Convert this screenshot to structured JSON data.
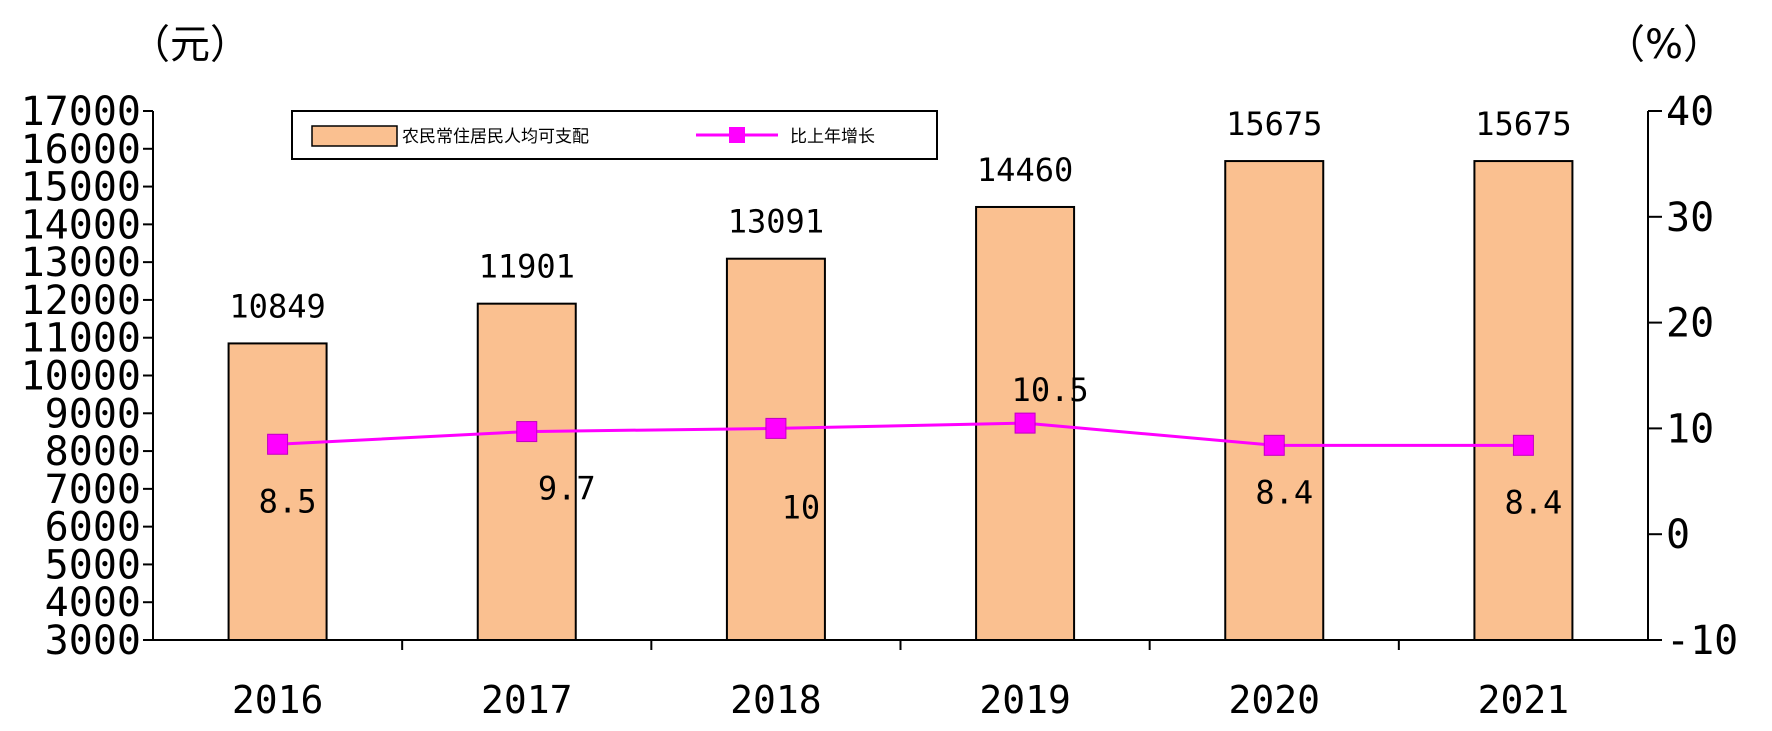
{
  "chart_data": {
    "type": "bar",
    "categories": [
      "2016",
      "2017",
      "2018",
      "2019",
      "2020",
      "2021"
    ],
    "series": [
      {
        "name": "农民常住居民人均可支配",
        "type": "bar",
        "axis": "left",
        "color": "#FAC090",
        "values": [
          10849,
          11901,
          13091,
          14460,
          15675,
          15675
        ]
      },
      {
        "name": "比上年增长",
        "type": "line",
        "axis": "right",
        "color": "#FF00FF",
        "values": [
          8.5,
          9.7,
          10,
          10.5,
          8.4,
          8.4
        ]
      }
    ],
    "y_left": {
      "unit": "（元）",
      "range": [
        3000,
        17000
      ],
      "ticks": [
        "17000",
        "16000",
        "15000",
        "14000",
        "13000",
        "12000",
        "11000",
        "10000",
        "9000",
        "8000",
        "7000",
        "6000",
        "5000",
        "4000",
        "3000"
      ]
    },
    "y_right": {
      "unit": "（%）",
      "range": [
        -10,
        40
      ],
      "ticks": [
        "40",
        "30",
        "20",
        "10",
        "0",
        "-10"
      ]
    },
    "bar_labels": [
      "10849",
      "11901",
      "13091",
      "14460",
      "15675",
      "15675"
    ],
    "line_labels": [
      "8.5",
      "9.7",
      "10",
      "10.5",
      "8.4",
      "8.4"
    ],
    "grid": false,
    "legend_position": "top-left"
  }
}
